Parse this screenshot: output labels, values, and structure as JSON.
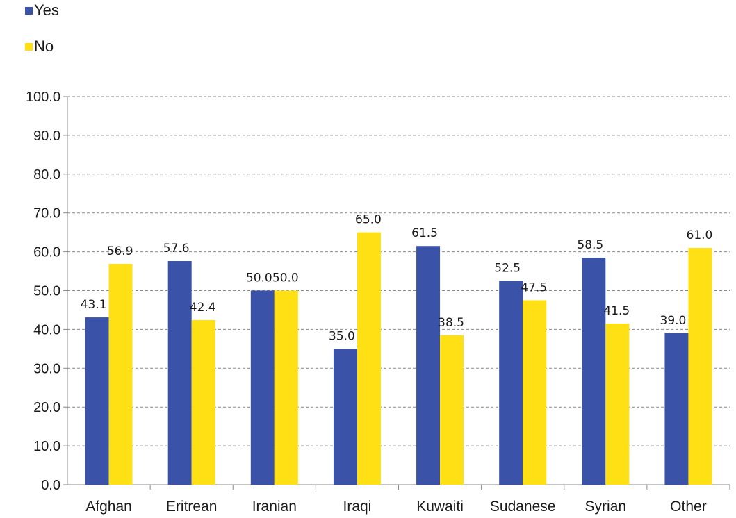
{
  "chart_data": {
    "type": "bar",
    "categories": [
      "Afghan",
      "Eritrean",
      "Iranian",
      "Iraqi",
      "Kuwaiti",
      "Sudanese",
      "Syrian",
      "Other"
    ],
    "series": [
      {
        "name": "Yes",
        "color": "#3a52a8",
        "values": [
          43.1,
          57.6,
          50.0,
          35.0,
          61.5,
          52.5,
          58.5,
          39.0
        ],
        "labels": [
          "43.1",
          "57.6",
          "50.0",
          "35.0",
          "61.5",
          "52.5",
          "58.5",
          "39.0"
        ]
      },
      {
        "name": "No",
        "color": "#ffe014",
        "values": [
          56.9,
          42.4,
          50.0,
          65.0,
          38.5,
          47.5,
          41.5,
          61.0
        ],
        "labels": [
          "56.9",
          "42.4",
          "50.0",
          "65.0",
          "38.5",
          "47.5",
          "41.5",
          "61.0"
        ]
      }
    ],
    "ylim": [
      0,
      100
    ],
    "yticks": [
      "0.0",
      "10.0",
      "20.0",
      "30.0",
      "40.0",
      "50.0",
      "60.0",
      "70.0",
      "80.0",
      "90.0",
      "100.0"
    ],
    "grid": true,
    "legend_position": "top-left"
  }
}
